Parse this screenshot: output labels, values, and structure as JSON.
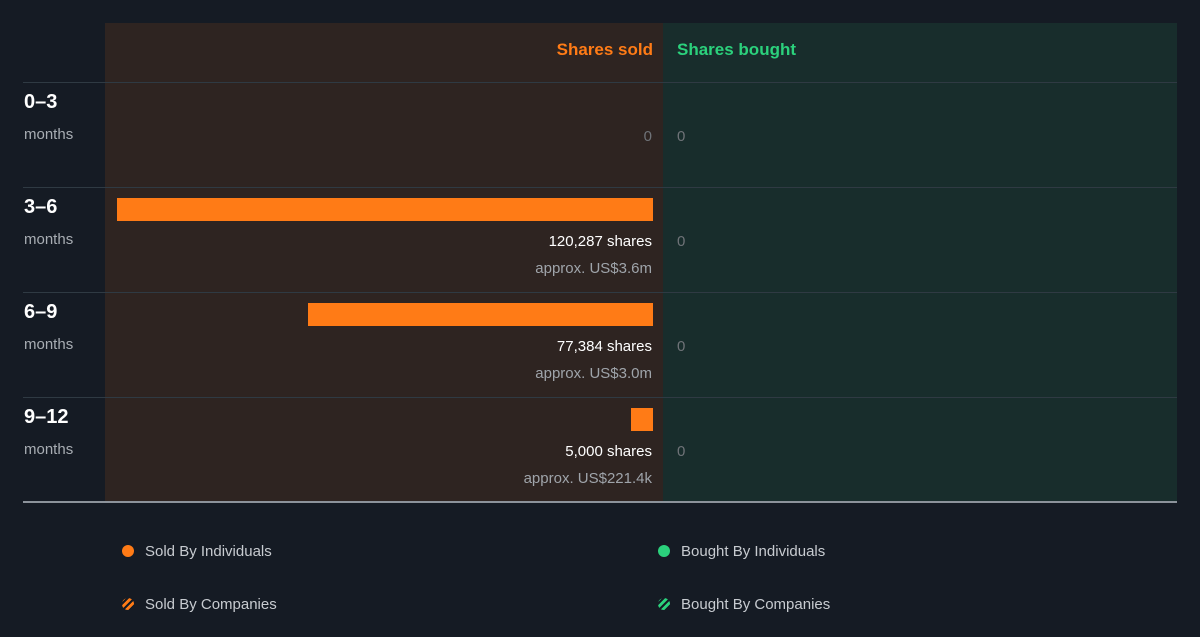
{
  "colors": {
    "sold": "#ff7b16",
    "bought": "#2bd17c"
  },
  "chart_data": {
    "type": "bar",
    "orientation": "horizontal-diverging",
    "headers": {
      "sold": "Shares sold",
      "bought": "Shares bought"
    },
    "max_value": 120287,
    "rows": [
      {
        "period": "0–3",
        "unit": "months",
        "sold": 0,
        "bought": 0,
        "sold_shares_label": "",
        "sold_value_label": "",
        "sold_zero_label": "0",
        "bought_label": "0"
      },
      {
        "period": "3–6",
        "unit": "months",
        "sold": 120287,
        "bought": 0,
        "sold_shares_label": "120,287 shares",
        "sold_value_label": "approx. US$3.6m",
        "sold_zero_label": "",
        "bought_label": "0"
      },
      {
        "period": "6–9",
        "unit": "months",
        "sold": 77384,
        "bought": 0,
        "sold_shares_label": "77,384 shares",
        "sold_value_label": "approx. US$3.0m",
        "sold_zero_label": "",
        "bought_label": "0"
      },
      {
        "period": "9–12",
        "unit": "months",
        "sold": 5000,
        "bought": 0,
        "sold_shares_label": "5,000 shares",
        "sold_value_label": "approx. US$221.4k",
        "sold_zero_label": "",
        "bought_label": "0"
      }
    ],
    "legend": {
      "sold_individuals": "Sold By Individuals",
      "sold_companies": "Sold By Companies",
      "bought_individuals": "Bought By Individuals",
      "bought_companies": "Bought By Companies"
    }
  }
}
